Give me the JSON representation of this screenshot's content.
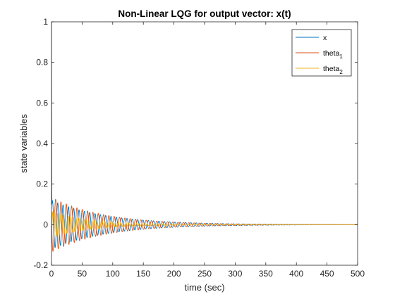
{
  "chart_data": {
    "type": "line",
    "title": "Non-Linear LQG for output vector: x(t)",
    "xlabel": "time (sec)",
    "ylabel": "state variables",
    "xlim": [
      0,
      500
    ],
    "ylim": [
      -0.2,
      1
    ],
    "xticks": [
      0,
      50,
      100,
      150,
      200,
      250,
      300,
      350,
      400,
      450,
      500
    ],
    "yticks": [
      -0.2,
      0,
      0.2,
      0.4,
      0.6,
      0.8,
      1
    ],
    "grid": false,
    "legend_position": "top-right",
    "series": [
      {
        "name": "x",
        "label_main": "x",
        "label_sub": "",
        "color": "#0072BD",
        "initial_value": 1,
        "envelope_peak": 0.12,
        "decay_time_constant_sec": 90,
        "oscillation_period_sec": 8.7,
        "phase_rad": 0.9
      },
      {
        "name": "theta_1",
        "label_main": "theta",
        "label_sub": "1",
        "color": "#D95319",
        "initial_value": 0,
        "envelope_peak": 0.135,
        "decay_time_constant_sec": 85,
        "oscillation_period_sec": 8.7,
        "phase_rad": 3.4
      },
      {
        "name": "theta_2",
        "label_main": "theta",
        "label_sub": "2",
        "color": "#EDB120",
        "initial_value": 0,
        "envelope_peak": 0.065,
        "decay_time_constant_sec": 60,
        "oscillation_period_sec": 4.3,
        "phase_rad": 0.3
      }
    ]
  }
}
